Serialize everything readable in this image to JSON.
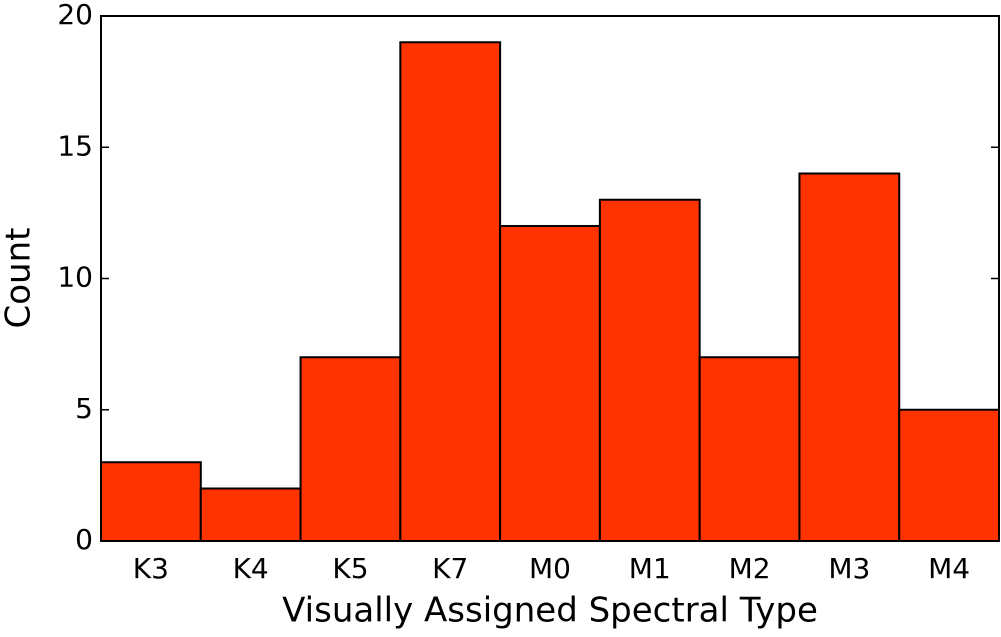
{
  "chart_data": {
    "type": "bar",
    "xlabel": "Visually Assigned Spectral Type",
    "ylabel": "Count",
    "categories": [
      "K3",
      "K4",
      "K5",
      "K7",
      "M0",
      "M1",
      "M2",
      "M3",
      "M4"
    ],
    "values": [
      3,
      2,
      7,
      19,
      12,
      13,
      7,
      14,
      5
    ],
    "color": "#ff3300",
    "ylim": [
      0,
      20
    ],
    "yticks": [
      0,
      5,
      10,
      15,
      20
    ]
  }
}
